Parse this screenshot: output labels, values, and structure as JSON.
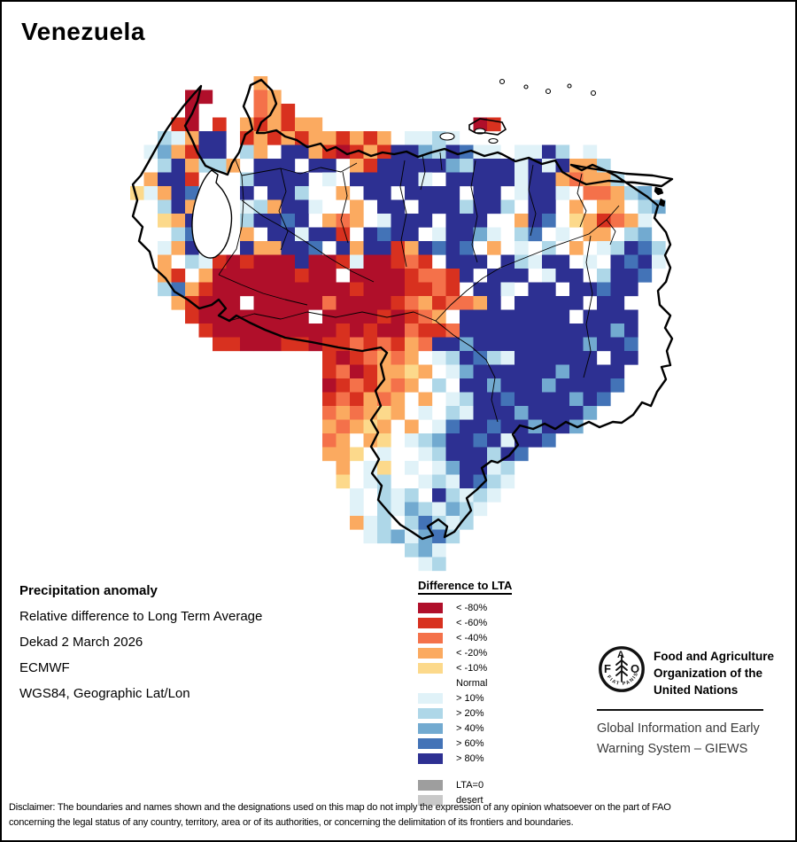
{
  "title": "Venezuela",
  "info_block": {
    "heading": "Precipitation anomaly",
    "lines": [
      "Relative difference to Long Term Average",
      "Dekad 2 March 2026",
      "ECMWF",
      "WGS84, Geographic Lat/Lon"
    ]
  },
  "legend": {
    "title": "Difference to LTA",
    "items": [
      {
        "key": "K",
        "label": "< -80%"
      },
      {
        "key": "R",
        "label": "< -60%"
      },
      {
        "key": "O",
        "label": "< -40%"
      },
      {
        "key": "o",
        "label": "< -20%"
      },
      {
        "key": "y",
        "label": "< -10%"
      },
      {
        "key": "w",
        "label": "Normal"
      },
      {
        "key": "c",
        "label": "> 10%"
      },
      {
        "key": "l",
        "label": "> 20%"
      },
      {
        "key": "m",
        "label": "> 40%"
      },
      {
        "key": "b",
        "label": "> 60%"
      },
      {
        "key": "B",
        "label": "> 80%"
      }
    ],
    "extra_items": [
      {
        "key": "gray",
        "label": "LTA=0"
      },
      {
        "key": "lightgray",
        "label": "desert"
      }
    ]
  },
  "palette": {
    "K": "#b00f2a",
    "R": "#d8311f",
    "O": "#f4714a",
    "o": "#fbaa60",
    "y": "#fcd98b",
    "w": "#ffffff",
    "c": "#e0f2f8",
    "l": "#aed7e8",
    "m": "#72aad0",
    "b": "#4373b7",
    "B": "#2d3092",
    "gray": "#9e9e9e",
    "lightgray": "#c9c9c9"
  },
  "map": {
    "rows": [
      ".........o..............................",
      "....KK...Oo.............................",
      "....K....OoR............................",
      "...RK.RwoRoRoow..........KR.............",
      "..lcoBBwRoRoRooRoRowcclcw...............",
      ".cmoRBBwlowBBoRKRoRBBmlBbccwccBlwc......",
      ".wlBollowBBBwBBwoRBBBBBmlBBBcBcBool.....",
      ".oBBR...lBBBBwcwBBBBBcwBBBBBcBBoOool....",
      "ycoBb...BwBBlwwowBBwBBBBwBBwcBBcwOOolm..",
      ".wlBo...cloBBcwwowBBwBBBlBBlwBBwowoowlm.",
      "..yoB...lBBbBwoOowcBBBwBBBwwoBbwyoROoc..",
      "..wlb...owBBcBBRwBbBBwcBBmcwlbwcwoowlm..",
      "..coB..wBooBBbwBoBBRoBbBbwowcwlwowclBbl.",
      "..owlcRKRKKKBKKRcKKRORwBBBwBlcBBwcwBbBc.",
      "..oRwoKKKKKKRKKwKKKKROORBwBBBwcBBwlBBb..",
      "..lboRKKKKKKKKKKRKKKRRORwBBcwBBwBBbBB...",
      "...oRKKKwKKKKKOKKKKROoROOoBwBBBBBwBB....",
      "....RKKKKKKKKwKKKKRKROowBBBBBBBBwBBBB...",
      ".....RKKKKKKKKKRKRKKORROBBBBBBBBBBBmB...",
      "......RRKKKRRKRRORORoOBBmBBBBBBBBmBBb...",
      "..............RKROoOowclBblcBBBBBBwBB...",
      "..............ROKRooyowcmBBBBBBmBBBB....",
      "..............KRORoOowlwBBmBBBmBBBBb....",
      "..............RORoOowowclBBbBBBBmBb.....",
      "..............OoOoyowcwlcBBBmBBBBm......",
      "..............oOoyowowcbBBbBBmBBm.......",
      "..............OowoywclmBBbBcBBb.........",
      "..............ooywcwwclBBBlBb...........",
      "...............owcywcwcmBBcl............",
      "...............ywclwwclcBblc............",
      "...............wcwlclwBlclc.............",
      "................cwlcmlcmlc..............",
      "................oclwlblcl...............",
      ".................clmcmbl................",
      "....................lmc.................",
      ".....................cl................."
    ]
  },
  "fao": {
    "logo_letters_f": "F",
    "logo_letters_a": "A",
    "logo_letters_o": "O",
    "logo_motto": "FIAT PANIS",
    "org_lines": [
      "Food and Agriculture",
      "Organization of the",
      "United Nations"
    ],
    "giews_lines": [
      "Global Information and Early",
      "Warning System – GIEWS"
    ]
  },
  "disclaimer": {
    "line1": "Disclaimer: The boundaries and names shown and the designations used on this map do not imply the expression of any opinion whatsoever on the part of FAO",
    "line2": "concerning the legal status of any country, territory, area or of its authorities, or concerning the delimitation of its frontiers and boundaries."
  }
}
